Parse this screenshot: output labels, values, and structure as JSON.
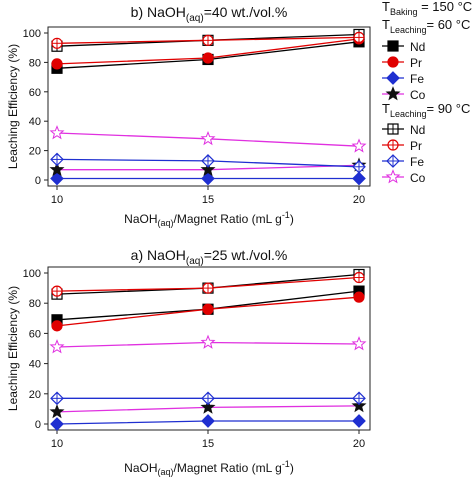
{
  "chart_data": [
    {
      "type": "line",
      "title": "b) NaOH(aq)=40 wt./vol.%",
      "title_parts": [
        "b) NaOH",
        "(aq)",
        "=40 wt./vol.%"
      ],
      "xlabel": "NaOH(aq)/Magnet Ratio (mL g-1)",
      "xlabel_parts": [
        "NaOH",
        "(aq)",
        "/Magnet Ratio (mL g",
        "-1",
        ")"
      ],
      "ylabel": "Leaching Efficiency (%)",
      "x": [
        10,
        15,
        20
      ],
      "xlim": [
        10,
        20
      ],
      "ylim": [
        0,
        100
      ],
      "xticks": [
        10,
        15,
        20
      ],
      "yticks": [
        0,
        20,
        40,
        60,
        80,
        100
      ],
      "grid": false,
      "series": [
        {
          "name": "Nd",
          "group": "150",
          "color": "#000000",
          "marker": "square",
          "values": [
            76,
            82,
            94
          ]
        },
        {
          "name": "Pr",
          "group": "150",
          "color": "#e00000",
          "marker": "circle",
          "values": [
            79,
            83,
            96
          ]
        },
        {
          "name": "Fe",
          "group": "150",
          "color": "#1f2fd0",
          "marker": "diamond",
          "values": [
            1,
            1,
            1
          ]
        },
        {
          "name": "Co",
          "group": "150",
          "color": "#e030e0",
          "marker": "star",
          "values": [
            7,
            7,
            10
          ]
        },
        {
          "name": "Nd",
          "group": "90",
          "color": "#000000",
          "marker": "open-square",
          "values": [
            91,
            95,
            99
          ]
        },
        {
          "name": "Pr",
          "group": "90",
          "color": "#e00000",
          "marker": "open-circle",
          "values": [
            93,
            95,
            97
          ]
        },
        {
          "name": "Fe",
          "group": "90",
          "color": "#1f2fd0",
          "marker": "open-diamond",
          "values": [
            14,
            13,
            9
          ]
        },
        {
          "name": "Co",
          "group": "90",
          "color": "#e030e0",
          "marker": "open-star",
          "values": [
            32,
            28,
            23
          ]
        }
      ]
    },
    {
      "type": "line",
      "title": "a) NaOH(aq)=25 wt./vol.%",
      "title_parts": [
        "a) NaOH",
        "(aq)",
        "=25 wt./vol.%"
      ],
      "xlabel": "NaOH(aq)/Magnet Ratio (mL g-1)",
      "xlabel_parts": [
        "NaOH",
        "(aq)",
        "/Magnet Ratio (mL g",
        "-1",
        ")"
      ],
      "ylabel": "Leaching Efficiency (%)",
      "x": [
        10,
        15,
        20
      ],
      "xlim": [
        10,
        20
      ],
      "ylim": [
        0,
        100
      ],
      "xticks": [
        10,
        15,
        20
      ],
      "yticks": [
        0,
        20,
        40,
        60,
        80,
        100
      ],
      "grid": false,
      "series": [
        {
          "name": "Nd",
          "group": "150",
          "color": "#000000",
          "marker": "square",
          "values": [
            69,
            76,
            88
          ]
        },
        {
          "name": "Pr",
          "group": "150",
          "color": "#e00000",
          "marker": "circle",
          "values": [
            65,
            76,
            84
          ]
        },
        {
          "name": "Fe",
          "group": "150",
          "color": "#1f2fd0",
          "marker": "diamond",
          "values": [
            0,
            2,
            2
          ]
        },
        {
          "name": "Co",
          "group": "150",
          "color": "#e030e0",
          "marker": "star",
          "values": [
            8,
            11,
            12
          ]
        },
        {
          "name": "Nd",
          "group": "90",
          "color": "#000000",
          "marker": "open-square",
          "values": [
            86,
            90,
            99
          ]
        },
        {
          "name": "Pr",
          "group": "90",
          "color": "#e00000",
          "marker": "open-circle",
          "values": [
            88,
            90,
            97
          ]
        },
        {
          "name": "Fe",
          "group": "90",
          "color": "#1f2fd0",
          "marker": "open-diamond",
          "values": [
            17,
            17,
            17
          ]
        },
        {
          "name": "Co",
          "group": "90",
          "color": "#e030e0",
          "marker": "open-star",
          "values": [
            51,
            54,
            53
          ]
        }
      ]
    }
  ],
  "legend": {
    "placement": "right",
    "header_baking": {
      "T": "T",
      "sub": "Baking",
      "rest": " = 150 °C"
    },
    "header_leach60": {
      "T": "T",
      "sub": "Leaching",
      "rest": "= 60 °C"
    },
    "header_leach90": {
      "T": "T",
      "sub": "Leaching",
      "rest": "= 90 °C"
    },
    "items_150": [
      "Nd",
      "Pr",
      "Fe",
      "Co"
    ],
    "items_90": [
      "Nd",
      "Pr",
      "Fe",
      "Co"
    ]
  }
}
